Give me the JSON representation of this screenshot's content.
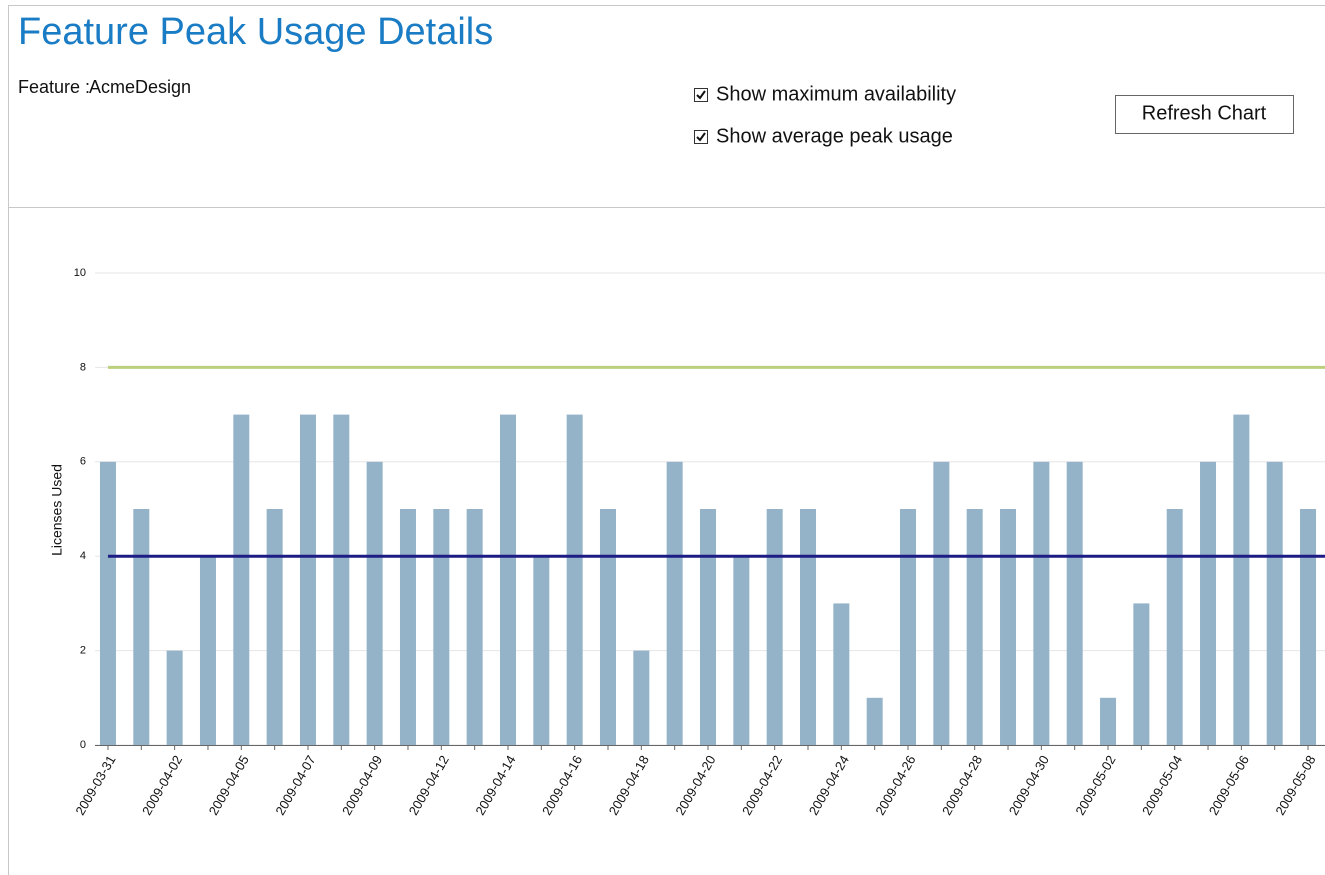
{
  "header": {
    "title": "Feature Peak Usage Details"
  },
  "feature": {
    "label": "Feature :",
    "value": "AcmeDesign"
  },
  "options": [
    {
      "label": "Show maximum availability",
      "checked": true
    },
    {
      "label": "Show average peak usage",
      "checked": true
    }
  ],
  "button": {
    "label": "Refresh Chart"
  },
  "chart_data": {
    "type": "bar",
    "ylabel": "Licenses Used",
    "categories": [
      "2009-03-31",
      null,
      "2009-04-02",
      null,
      "2009-04-05",
      null,
      "2009-04-07",
      null,
      "2009-04-09",
      null,
      "2009-04-12",
      null,
      "2009-04-14",
      null,
      "2009-04-16",
      null,
      "2009-04-18",
      null,
      "2009-04-20",
      null,
      "2009-04-22",
      null,
      "2009-04-24",
      null,
      "2009-04-26",
      null,
      "2009-04-28",
      null,
      "2009-04-30",
      null,
      "2009-05-02",
      null,
      "2009-05-04",
      null,
      "2009-05-06",
      null,
      "2009-05-08"
    ],
    "values": [
      6,
      5,
      2,
      4,
      7,
      5,
      7,
      7,
      6,
      5,
      5,
      5,
      7,
      4,
      7,
      5,
      2,
      6,
      5,
      4,
      5,
      5,
      3,
      1,
      5,
      6,
      5,
      5,
      6,
      6,
      1,
      3,
      5,
      6,
      7,
      6,
      5
    ],
    "color": "#94b3c9",
    "max_availability": {
      "value": 8,
      "color": "#bccf7c"
    },
    "average_peak_usage": {
      "value": 4,
      "color": "#1c1c84"
    },
    "ylim": [
      0,
      11
    ],
    "yticks": [
      0,
      2,
      4,
      6,
      8,
      10
    ],
    "grid": true
  }
}
